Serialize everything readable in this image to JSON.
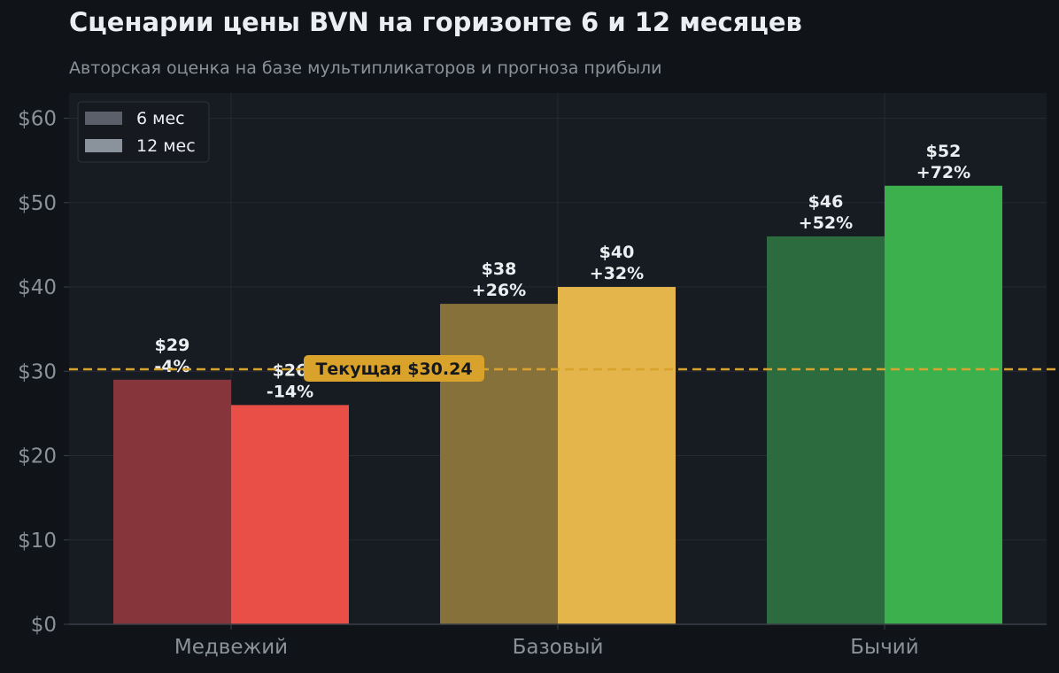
{
  "chart_data": {
    "type": "bar",
    "title": "Сценарии цены BVN на горизонте 6 и 12 месяцев",
    "subtitle": "Авторская оценка на базе мультипликаторов и прогноза прибыли",
    "categories": [
      "Медвежий",
      "Базовый",
      "Бычий"
    ],
    "series": [
      {
        "name": "6 мес",
        "values": [
          29,
          38,
          46
        ],
        "labels": [
          "$29\n-4%",
          "$38\n+26%",
          "$46\n+52%"
        ],
        "colors": [
          "#86363a",
          "#86713a",
          "#2b6b3e"
        ]
      },
      {
        "name": "12 мес",
        "values": [
          26,
          40,
          52
        ],
        "labels": [
          "$26\n-14%",
          "$40\n+32%",
          "$52\n+72%"
        ],
        "colors": [
          "#e94f47",
          "#e3b54b",
          "#3db04e"
        ]
      }
    ],
    "legend_colors": [
      "#5a5f69",
      "#8a929b"
    ],
    "legend_position": "top-left",
    "ylim": [
      0,
      63
    ],
    "yticks": [
      0,
      10,
      20,
      30,
      40,
      50,
      60
    ],
    "ytick_labels": [
      "$0",
      "$10",
      "$20",
      "$30",
      "$40",
      "$50",
      "$60"
    ],
    "grid": true,
    "reference_line": {
      "value": 30.24,
      "label": "Текущая $30.24",
      "color": "#d9a22a"
    },
    "colors": {
      "background": "#101419",
      "plot_background": "#171b22",
      "grid": "#252a33",
      "text": "#eceff2",
      "muted": "#8b9199"
    }
  }
}
